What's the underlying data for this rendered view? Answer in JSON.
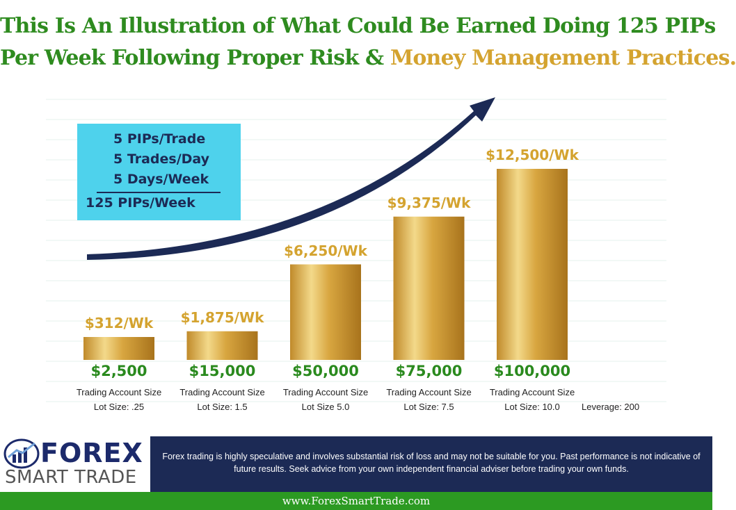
{
  "title": {
    "line1": "This Is An Illustration of What Could Be Earned Doing 125 PIPs",
    "line2_green": "Per Week Following Proper Risk &",
    "line2_gold": " Money Management Practices."
  },
  "pips_box": {
    "lines": [
      "5 PIPs/Trade",
      "5 Trades/Day",
      "5 Days/Week"
    ],
    "total": "125 PIPs/Week"
  },
  "chart_data": {
    "type": "bar",
    "categories": [
      "$2,500",
      "$15,000",
      "$50,000",
      "$75,000",
      "$100,000"
    ],
    "values": [
      312,
      1875,
      6250,
      9375,
      12500
    ],
    "data_labels": [
      "$312/Wk",
      "$1,875/Wk",
      "$6,250/Wk",
      "$9,375/Wk",
      "$12,500/Wk"
    ],
    "sub_label": "Trading Account Size",
    "lot_sizes": [
      "Lot Size: .25",
      "Lot Size: 1.5",
      "Lot Size 5.0",
      "Lot Size: 7.5",
      "Lot Size: 10.0"
    ],
    "annotation": "Leverage: 200",
    "ylim": [
      0,
      12500
    ],
    "grid": true,
    "bar_color": "#d4a32f",
    "title": "",
    "xlabel": "",
    "ylabel": ""
  },
  "footer": {
    "logo_line1": "FOREX",
    "logo_line2": "SMART TRADE",
    "disclaimer": "Forex trading is highly speculative and involves substantial risk of loss and may not be suitable for you.   Past performance is not indicative of future results. Seek advice from your own independent financial adviser before trading your own funds.",
    "url": "www.ForexSmartTrade.com"
  },
  "colors": {
    "green": "#2e8b1f",
    "gold": "#d4a32f",
    "navy": "#1c2a55",
    "cyan": "#4ed2ec"
  }
}
